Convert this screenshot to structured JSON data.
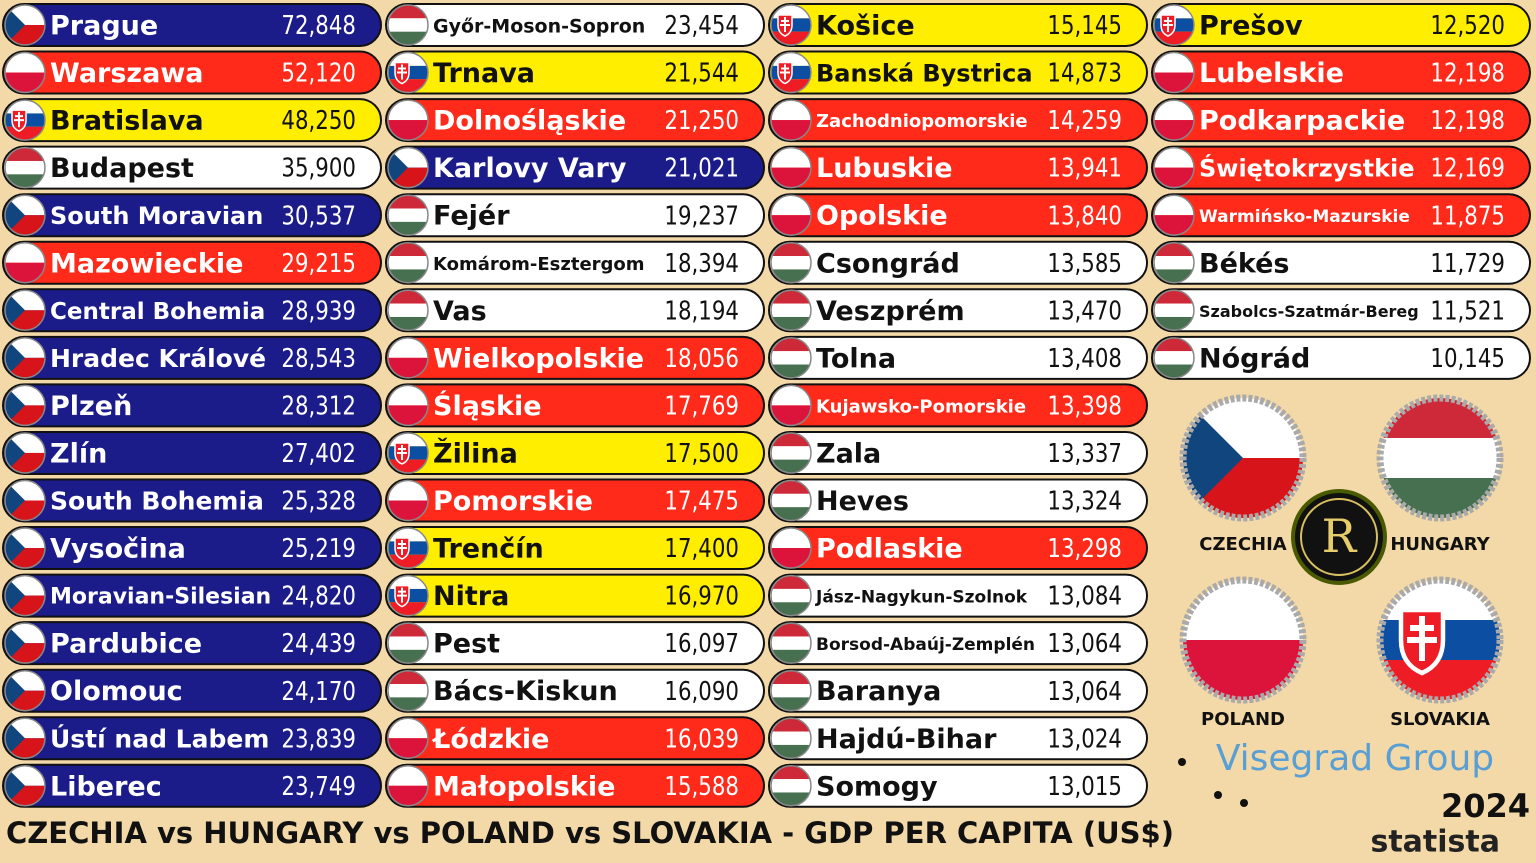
{
  "title": "CZECHIA vs HUNGARY vs POLAND vs SLOVAKIA - GDP PER CAPITA (US$)",
  "year": "2024",
  "brand": "statista",
  "group": "Visegrad Group",
  "logo": "R",
  "countries": [
    {
      "name": "CZECHIA",
      "color": "#1b1b8a",
      "text_color": "#ffffff"
    },
    {
      "name": "HUNGARY",
      "color": "#ffffff",
      "text_color": "#111111"
    },
    {
      "name": "POLAND",
      "color": "#ff2a1a",
      "text_color": "#ffffff"
    },
    {
      "name": "SLOVAKIA",
      "color": "#ffee00",
      "text_color": "#111111"
    }
  ],
  "rows": [
    [
      "Prague",
      "72,848",
      "CZECHIA"
    ],
    [
      "Warszawa",
      "52,120",
      "POLAND"
    ],
    [
      "Bratislava",
      "48,250",
      "SLOVAKIA"
    ],
    [
      "Budapest",
      "35,900",
      "HUNGARY"
    ],
    [
      "South Moravian",
      "30,537",
      "CZECHIA"
    ],
    [
      "Mazowieckie",
      "29,215",
      "POLAND"
    ],
    [
      "Central Bohemia",
      "28,939",
      "CZECHIA"
    ],
    [
      "Hradec Králové",
      "28,543",
      "CZECHIA"
    ],
    [
      "Plzeň",
      "28,312",
      "CZECHIA"
    ],
    [
      "Zlín",
      "27,402",
      "CZECHIA"
    ],
    [
      "South Bohemia",
      "25,328",
      "CZECHIA"
    ],
    [
      "Vysočina",
      "25,219",
      "CZECHIA"
    ],
    [
      "Moravian-Silesian",
      "24,820",
      "CZECHIA"
    ],
    [
      "Pardubice",
      "24,439",
      "CZECHIA"
    ],
    [
      "Olomouc",
      "24,170",
      "CZECHIA"
    ],
    [
      "Ústí nad Labem",
      "23,839",
      "CZECHIA"
    ],
    [
      "Liberec",
      "23,749",
      "CZECHIA"
    ],
    [
      "Győr-Moson-Sopron",
      "23,454",
      "HUNGARY"
    ],
    [
      "Trnava",
      "21,544",
      "SLOVAKIA"
    ],
    [
      "Dolnośląskie",
      "21,250",
      "POLAND"
    ],
    [
      "Karlovy Vary",
      "21,021",
      "CZECHIA"
    ],
    [
      "Fejér",
      "19,237",
      "HUNGARY"
    ],
    [
      "Komárom-Esztergom",
      "18,394",
      "HUNGARY"
    ],
    [
      "Vas",
      "18,194",
      "HUNGARY"
    ],
    [
      "Wielkopolskie",
      "18,056",
      "POLAND"
    ],
    [
      "Śląskie",
      "17,769",
      "POLAND"
    ],
    [
      "Žilina",
      "17,500",
      "SLOVAKIA"
    ],
    [
      "Pomorskie",
      "17,475",
      "POLAND"
    ],
    [
      "Trenčín",
      "17,400",
      "SLOVAKIA"
    ],
    [
      "Nitra",
      "16,970",
      "SLOVAKIA"
    ],
    [
      "Pest",
      "16,097",
      "HUNGARY"
    ],
    [
      "Bács-Kiskun",
      "16,090",
      "HUNGARY"
    ],
    [
      "Łódzkie",
      "16,039",
      "POLAND"
    ],
    [
      "Małopolskie",
      "15,588",
      "POLAND"
    ],
    [
      "Košice",
      "15,145",
      "SLOVAKIA"
    ],
    [
      "Banská Bystrica",
      "14,873",
      "SLOVAKIA"
    ],
    [
      "Zachodniopomorskie",
      "14,259",
      "POLAND"
    ],
    [
      "Lubuskie",
      "13,941",
      "POLAND"
    ],
    [
      "Opolskie",
      "13,840",
      "POLAND"
    ],
    [
      "Csongrád",
      "13,585",
      "HUNGARY"
    ],
    [
      "Veszprém",
      "13,470",
      "HUNGARY"
    ],
    [
      "Tolna",
      "13,408",
      "HUNGARY"
    ],
    [
      "Kujawsko-Pomorskie",
      "13,398",
      "POLAND"
    ],
    [
      "Zala",
      "13,337",
      "HUNGARY"
    ],
    [
      "Heves",
      "13,324",
      "HUNGARY"
    ],
    [
      "Podlaskie",
      "13,298",
      "POLAND"
    ],
    [
      "Jász-Nagykun-Szolnok",
      "13,084",
      "HUNGARY"
    ],
    [
      "Borsod-Abaúj-Zemplén",
      "13,064",
      "HUNGARY"
    ],
    [
      "Baranya",
      "13,064",
      "HUNGARY"
    ],
    [
      "Hajdú-Bihar",
      "13,024",
      "HUNGARY"
    ],
    [
      "Somogy",
      "13,015",
      "HUNGARY"
    ],
    [
      "Prešov",
      "12,520",
      "SLOVAKIA"
    ],
    [
      "Lubelskie",
      "12,198",
      "POLAND"
    ],
    [
      "Podkarpackie",
      "12,198",
      "POLAND"
    ],
    [
      "Świętokrzystkie",
      "12,169",
      "POLAND"
    ],
    [
      "Warmińsko-Mazurskie",
      "11,875",
      "POLAND"
    ],
    [
      "Békés",
      "11,729",
      "HUNGARY"
    ],
    [
      "Szabolcs-Szatmár-Bereg",
      "11,521",
      "HUNGARY"
    ],
    [
      "Nógrád",
      "10,145",
      "HUNGARY"
    ]
  ]
}
